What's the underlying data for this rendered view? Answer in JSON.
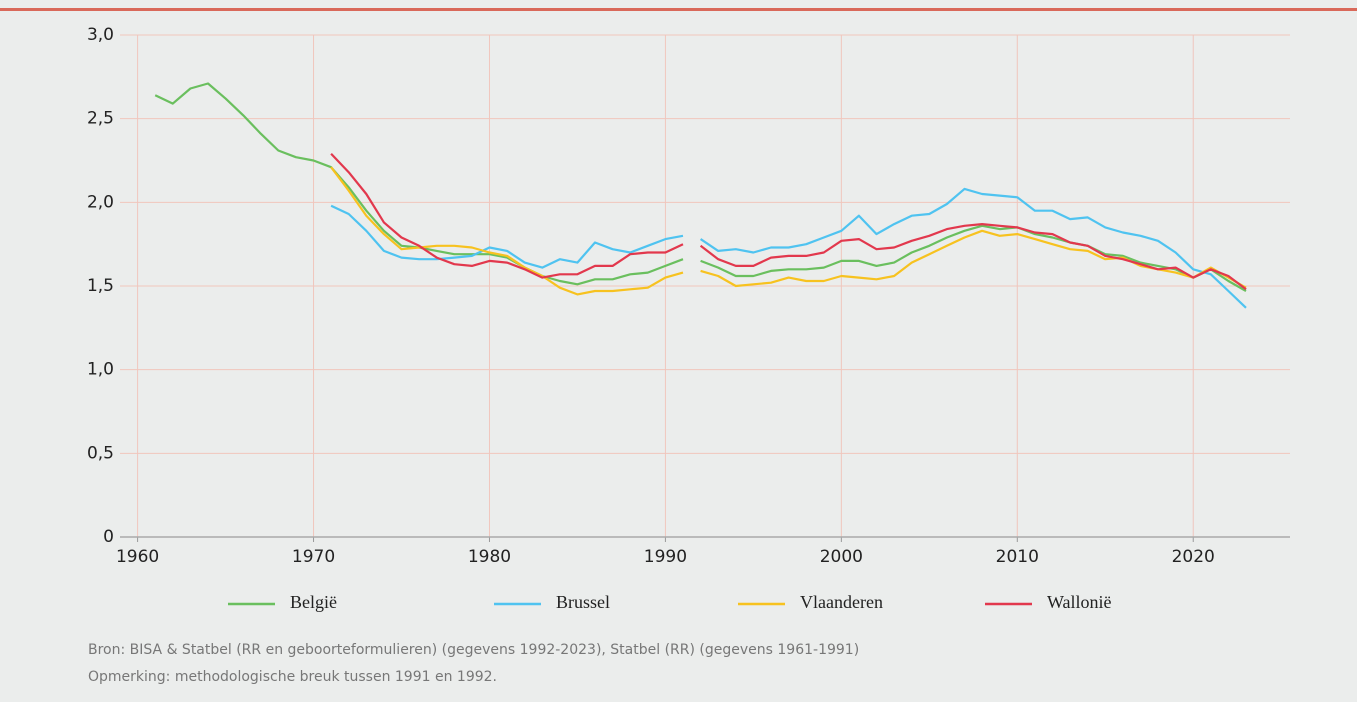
{
  "chart_data": {
    "type": "line",
    "x": [
      1961,
      1962,
      1963,
      1964,
      1965,
      1966,
      1967,
      1968,
      1969,
      1970,
      1971,
      1972,
      1973,
      1974,
      1975,
      1976,
      1977,
      1978,
      1979,
      1980,
      1981,
      1982,
      1983,
      1984,
      1985,
      1986,
      1987,
      1988,
      1989,
      1990,
      1991,
      null,
      1992,
      1993,
      1994,
      1995,
      1996,
      1997,
      1998,
      1999,
      2000,
      2001,
      2002,
      2003,
      2004,
      2005,
      2006,
      2007,
      2008,
      2009,
      2010,
      2011,
      2012,
      2013,
      2014,
      2015,
      2016,
      2017,
      2018,
      2019,
      2020,
      2021,
      2022,
      2023
    ],
    "series": [
      {
        "name": "België",
        "color": "#6abf5e",
        "values": [
          2.64,
          2.59,
          2.68,
          2.71,
          2.62,
          2.52,
          2.41,
          2.31,
          2.27,
          2.25,
          2.21,
          2.09,
          1.95,
          1.83,
          1.74,
          1.73,
          1.71,
          1.69,
          1.69,
          1.69,
          1.67,
          1.61,
          1.56,
          1.53,
          1.51,
          1.54,
          1.54,
          1.57,
          1.58,
          1.62,
          1.66,
          null,
          1.65,
          1.61,
          1.56,
          1.56,
          1.59,
          1.6,
          1.6,
          1.61,
          1.65,
          1.65,
          1.62,
          1.64,
          1.7,
          1.74,
          1.79,
          1.83,
          1.86,
          1.84,
          1.85,
          1.81,
          1.79,
          1.76,
          1.74,
          1.69,
          1.68,
          1.64,
          1.62,
          1.6,
          1.55,
          1.6,
          1.53,
          1.47
        ]
      },
      {
        "name": "Brussel",
        "color": "#4fc3f0",
        "values": [
          null,
          null,
          null,
          null,
          null,
          null,
          null,
          null,
          null,
          null,
          1.98,
          1.93,
          1.83,
          1.71,
          1.67,
          1.66,
          1.66,
          1.67,
          1.68,
          1.73,
          1.71,
          1.64,
          1.61,
          1.66,
          1.64,
          1.76,
          1.72,
          1.7,
          1.74,
          1.78,
          1.8,
          null,
          1.78,
          1.71,
          1.72,
          1.7,
          1.73,
          1.73,
          1.75,
          1.79,
          1.83,
          1.92,
          1.81,
          1.87,
          1.92,
          1.93,
          1.99,
          2.08,
          2.05,
          2.04,
          2.03,
          1.95,
          1.95,
          1.9,
          1.91,
          1.85,
          1.82,
          1.8,
          1.77,
          1.7,
          1.6,
          1.57,
          1.47,
          1.37
        ]
      },
      {
        "name": "Vlaanderen",
        "color": "#f7c21f",
        "values": [
          null,
          null,
          null,
          null,
          null,
          null,
          null,
          null,
          null,
          null,
          2.21,
          2.07,
          1.92,
          1.81,
          1.72,
          1.73,
          1.74,
          1.74,
          1.73,
          1.7,
          1.68,
          1.61,
          1.56,
          1.49,
          1.45,
          1.47,
          1.47,
          1.48,
          1.49,
          1.55,
          1.58,
          null,
          1.59,
          1.56,
          1.5,
          1.51,
          1.52,
          1.55,
          1.53,
          1.53,
          1.56,
          1.55,
          1.54,
          1.56,
          1.64,
          1.69,
          1.74,
          1.79,
          1.83,
          1.8,
          1.81,
          1.78,
          1.75,
          1.72,
          1.71,
          1.66,
          1.67,
          1.62,
          1.6,
          1.58,
          1.55,
          1.61,
          1.55,
          1.49
        ]
      },
      {
        "name": "Wallonië",
        "color": "#e2384d",
        "values": [
          null,
          null,
          null,
          null,
          null,
          null,
          null,
          null,
          null,
          null,
          2.29,
          2.18,
          2.05,
          1.88,
          1.79,
          1.74,
          1.67,
          1.63,
          1.62,
          1.65,
          1.64,
          1.6,
          1.55,
          1.57,
          1.57,
          1.62,
          1.62,
          1.69,
          1.7,
          1.7,
          1.75,
          null,
          1.74,
          1.66,
          1.62,
          1.62,
          1.67,
          1.68,
          1.68,
          1.7,
          1.77,
          1.78,
          1.72,
          1.73,
          1.77,
          1.8,
          1.84,
          1.86,
          1.87,
          1.86,
          1.85,
          1.82,
          1.81,
          1.76,
          1.74,
          1.68,
          1.66,
          1.63,
          1.6,
          1.61,
          1.55,
          1.6,
          1.56,
          1.48
        ]
      }
    ],
    "xlim": [
      1959,
      2025.5
    ],
    "xticks": [
      1960,
      1970,
      1980,
      1990,
      2000,
      2010,
      2020
    ],
    "ylim": [
      0,
      3
    ],
    "yticks": [
      0,
      {
        "value": 0.5,
        "label": "0,5"
      },
      {
        "value": 1,
        "label": "1,0"
      },
      {
        "value": 1.5,
        "label": "1,5"
      },
      {
        "value": 2,
        "label": "2,0"
      },
      {
        "value": 2.5,
        "label": "2,5"
      },
      {
        "value": 3,
        "label": "3,0"
      }
    ],
    "grid": true,
    "notes": [
      "Bron: BISA & Statbel (RR en geboorteformulieren) (gegevens 1992-2023), Statbel (RR) (gegevens 1961-1991)",
      "Opmerking: methodologische breuk tussen 1991 en 1992."
    ]
  }
}
